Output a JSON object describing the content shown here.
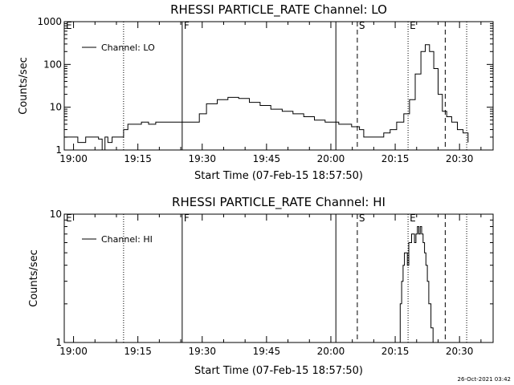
{
  "footer": {
    "timestamp": "26-Oct-2021 03:42"
  },
  "chart_data": [
    {
      "type": "line",
      "title": "RHESSI PARTICLE_RATE Channel: LO",
      "xlabel": "Start Time (07-Feb-15 18:57:50)",
      "ylabel": "Counts/sec",
      "yscale": "log",
      "ylim": [
        1,
        1000
      ],
      "xlim": [
        "18:57:50",
        "20:37:50"
      ],
      "xticks": [
        "19:00",
        "19:15",
        "19:30",
        "19:45",
        "20:00",
        "20:15",
        "20:30"
      ],
      "yticks": [
        "1",
        "10",
        "100",
        "1000"
      ],
      "legend": {
        "label": "Channel: LO",
        "position": "top-left"
      },
      "grid": false,
      "events": [
        {
          "label": "E",
          "time": "18:57:50",
          "style": "none"
        },
        {
          "label": "",
          "time": "19:11:40",
          "style": "dotted"
        },
        {
          "label": "F",
          "time": "19:25:20",
          "style": "solid"
        },
        {
          "label": "",
          "time": "20:01:10",
          "style": "solid"
        },
        {
          "label": "S",
          "time": "20:06:10",
          "style": "dashed"
        },
        {
          "label": "E",
          "time": "20:18:00",
          "style": "dotted"
        },
        {
          "label": "",
          "time": "20:26:40",
          "style": "dashed"
        },
        {
          "label": "",
          "time": "20:31:40",
          "style": "dotted"
        }
      ],
      "series": [
        {
          "name": "Channel: LO",
          "x": [
            "18:57:50",
            "18:59:30",
            "19:01:00",
            "19:02:50",
            "19:04:40",
            "19:05:50",
            "19:06:40",
            "19:07:20",
            "19:08:00",
            "19:09:00",
            "19:10:20",
            "19:11:40",
            "19:12:40",
            "19:14:10",
            "19:15:50",
            "19:17:30",
            "19:19:10",
            "19:21:00",
            "19:22:30",
            "19:24:10",
            "19:25:50",
            "19:27:40",
            "19:29:20",
            "19:31:00",
            "19:33:30",
            "19:36:00",
            "19:38:30",
            "19:41:00",
            "19:43:30",
            "19:46:00",
            "19:48:40",
            "19:51:10",
            "19:53:40",
            "19:56:10",
            "19:58:40",
            "20:00:20",
            "20:01:50",
            "20:03:20",
            "20:04:50",
            "20:06:40",
            "20:07:40",
            "20:09:00",
            "20:10:50",
            "20:12:20",
            "20:13:50",
            "20:15:20",
            "20:17:00",
            "20:18:20",
            "20:19:40",
            "20:21:00",
            "20:22:00",
            "20:23:00",
            "20:24:00",
            "20:25:00",
            "20:26:00",
            "20:27:00",
            "20:28:10",
            "20:29:30",
            "20:30:50",
            "20:32:00"
          ],
          "y": [
            2,
            2,
            1.5,
            2,
            2,
            1.8,
            1,
            2,
            1.5,
            2,
            2,
            3,
            4,
            4,
            4.5,
            4,
            4.5,
            4.5,
            4.5,
            4.5,
            4.5,
            4.5,
            7,
            12,
            15,
            17,
            16,
            13,
            11,
            9,
            8,
            7,
            6,
            5,
            4.5,
            4.5,
            4,
            4,
            3.5,
            3,
            2,
            2,
            2,
            2.5,
            3,
            4.5,
            7,
            15,
            60,
            200,
            290,
            200,
            80,
            20,
            8,
            6,
            4.5,
            3,
            2.5,
            1.5
          ]
        }
      ]
    },
    {
      "type": "line",
      "title": "RHESSI PARTICLE_RATE Channel: HI",
      "xlabel": "Start Time (07-Feb-15 18:57:50)",
      "ylabel": "Counts/sec",
      "yscale": "log",
      "ylim": [
        1,
        10
      ],
      "xlim": [
        "18:57:50",
        "20:37:50"
      ],
      "xticks": [
        "19:00",
        "19:15",
        "19:30",
        "19:45",
        "20:00",
        "20:15",
        "20:30"
      ],
      "yticks": [
        "1",
        "10"
      ],
      "legend": {
        "label": "Channel: HI",
        "position": "top-left"
      },
      "grid": false,
      "events": [
        {
          "label": "E",
          "time": "18:57:50",
          "style": "none"
        },
        {
          "label": "",
          "time": "19:11:40",
          "style": "dotted"
        },
        {
          "label": "F",
          "time": "19:25:20",
          "style": "solid"
        },
        {
          "label": "",
          "time": "20:01:10",
          "style": "solid"
        },
        {
          "label": "S",
          "time": "20:06:10",
          "style": "dashed"
        },
        {
          "label": "E",
          "time": "20:18:00",
          "style": "dotted"
        },
        {
          "label": "",
          "time": "20:26:40",
          "style": "dashed"
        },
        {
          "label": "",
          "time": "20:31:40",
          "style": "dotted"
        }
      ],
      "series": [
        {
          "name": "Channel: HI",
          "x": [
            "20:15:50",
            "20:16:10",
            "20:16:30",
            "20:16:50",
            "20:17:10",
            "20:17:30",
            "20:17:50",
            "20:18:10",
            "20:18:30",
            "20:18:50",
            "20:19:10",
            "20:19:30",
            "20:19:50",
            "20:20:10",
            "20:20:30",
            "20:20:50",
            "20:21:10",
            "20:21:30",
            "20:21:50",
            "20:22:10",
            "20:22:30",
            "20:22:50",
            "20:23:20",
            "20:23:50"
          ],
          "y": [
            1,
            2,
            3,
            4,
            5,
            5,
            4,
            6,
            6,
            7,
            7,
            6,
            7,
            8,
            7,
            8,
            7,
            6,
            5,
            4,
            3,
            2,
            1.3,
            1
          ]
        }
      ]
    }
  ]
}
